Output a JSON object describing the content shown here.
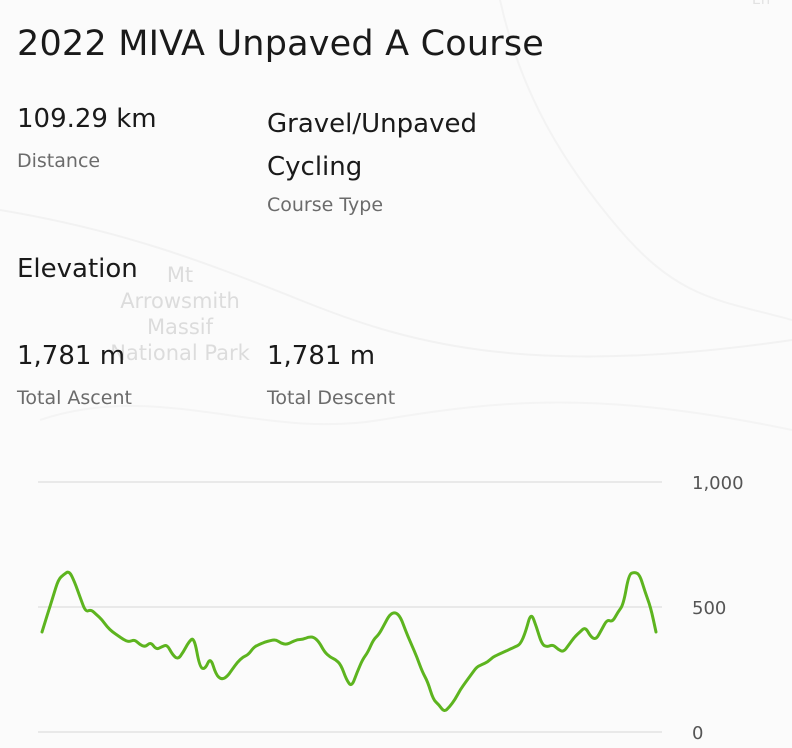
{
  "map": {
    "park_label": "Mt\nArrowsmith\nMassif\nNational Park",
    "corner_label": "Err"
  },
  "course": {
    "title": "2022 MIVA Unpaved A Course",
    "distance_value": "109.29 km",
    "distance_label": "Distance",
    "type_value": "Gravel/Unpaved\nCycling",
    "type_label": "Course Type"
  },
  "elevation": {
    "heading": "Elevation",
    "ascent_value": "1,781 m",
    "ascent_label": "Total Ascent",
    "descent_value": "1,781 m",
    "descent_label": "Total Descent"
  },
  "colors": {
    "line": "#5db41f",
    "grid": "#e3e3e3",
    "label": "#555555"
  },
  "chart_data": {
    "type": "line",
    "xlabel": "",
    "ylabel": "",
    "ylim": [
      0,
      1000
    ],
    "yticks": [
      "1,000",
      "500",
      "0"
    ],
    "ytick_values": [
      1000,
      500,
      0
    ],
    "grid": true,
    "series": [
      {
        "values": [
          400,
          470,
          540,
          610,
          630,
          645,
          600,
          540,
          480,
          490,
          470,
          450,
          420,
          400,
          385,
          370,
          360,
          370,
          350,
          340,
          360,
          330,
          340,
          350,
          310,
          290,
          320,
          360,
          380,
          260,
          250,
          300,
          230,
          210,
          220,
          250,
          280,
          300,
          310,
          340,
          350,
          360,
          365,
          370,
          355,
          350,
          360,
          370,
          370,
          380,
          380,
          360,
          320,
          300,
          290,
          270,
          210,
          180,
          240,
          290,
          320,
          370,
          390,
          430,
          470,
          480,
          460,
          400,
          350,
          300,
          240,
          200,
          130,
          110,
          80,
          100,
          130,
          170,
          200,
          230,
          260,
          270,
          280,
          300,
          310,
          320,
          330,
          340,
          350,
          400,
          480,
          420,
          350,
          340,
          350,
          330,
          320,
          350,
          380,
          400,
          420,
          380,
          370,
          410,
          450,
          440,
          480,
          510,
          630,
          640,
          630,
          560,
          500,
          400
        ]
      }
    ]
  }
}
